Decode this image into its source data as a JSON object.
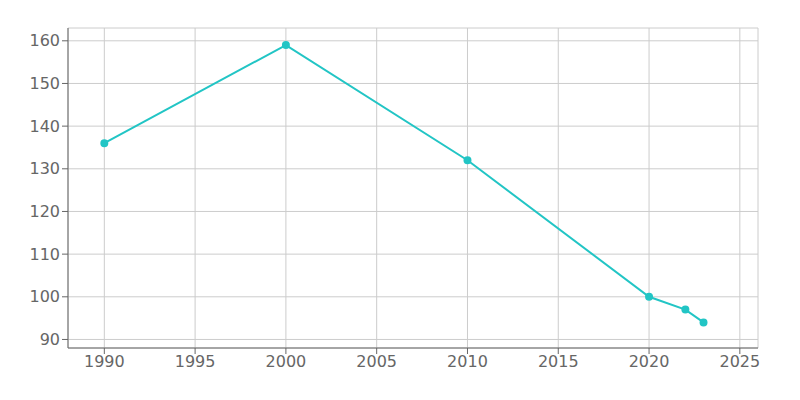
{
  "chart_data": {
    "type": "line",
    "x": [
      1990,
      2000,
      2010,
      2020,
      2022,
      2023
    ],
    "values": [
      136,
      159,
      132,
      100,
      97,
      94
    ],
    "color": "#22c5c5",
    "marker": "circle",
    "xlim": [
      1988,
      2026
    ],
    "ylim": [
      88,
      163
    ],
    "xticks": [
      1990,
      1995,
      2000,
      2005,
      2010,
      2015,
      2020,
      2025
    ],
    "yticks": [
      90,
      100,
      110,
      120,
      130,
      140,
      150,
      160
    ],
    "grid": true
  }
}
